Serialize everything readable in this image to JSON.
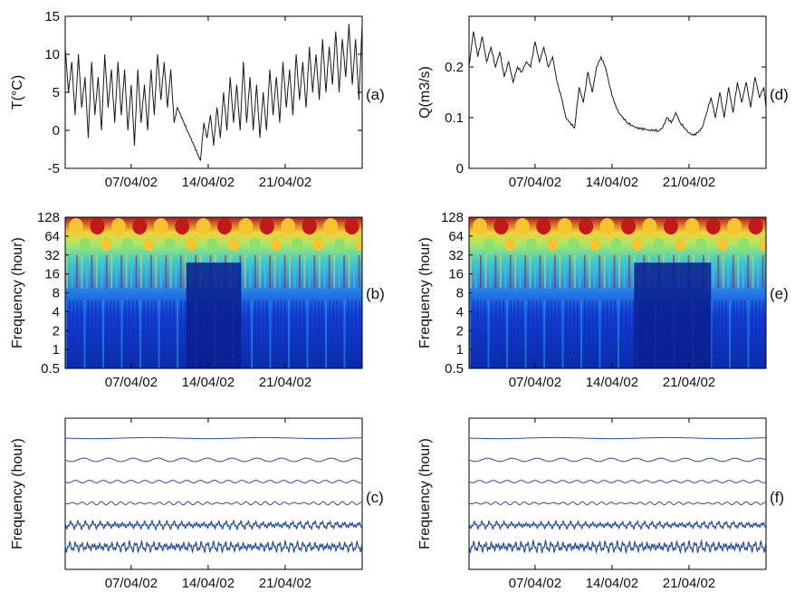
{
  "chart_data": [
    {
      "id": "a",
      "type": "line",
      "panel_label": "(a)",
      "ylabel": "T(°C)",
      "ylim": [
        -5,
        15
      ],
      "yticks": [
        "-5",
        "0",
        "5",
        "10",
        "15"
      ],
      "xticks": [
        "07/04/02",
        "14/04/02",
        "21/04/02"
      ],
      "color": "#1a1a1a",
      "x_days": [
        0,
        0.3,
        0.6,
        0.9,
        1.2,
        1.5,
        1.8,
        2.1,
        2.4,
        2.7,
        3.0,
        3.3,
        3.6,
        3.9,
        4.2,
        4.5,
        4.8,
        5.1,
        5.4,
        5.7,
        6.0,
        6.3,
        6.6,
        6.9,
        7.2,
        7.5,
        7.8,
        8.1,
        8.4,
        8.7,
        9.0,
        9.3,
        9.6,
        9.9,
        10.2,
        10.5,
        10.8,
        11.1,
        11.4,
        11.7,
        12.0,
        12.3,
        12.6,
        12.9,
        13.2,
        13.5,
        13.8,
        14.1,
        14.4,
        14.7,
        15.0,
        15.3,
        15.6,
        15.9,
        16.2,
        16.5,
        16.8,
        17.1,
        17.4,
        17.7,
        18.0,
        18.3,
        18.6,
        18.9,
        19.2,
        19.5,
        19.8,
        20.1,
        20.4,
        20.7,
        21.0,
        21.3,
        21.6,
        21.9,
        22.2,
        22.5,
        22.8,
        23.1,
        23.4,
        23.7,
        24.0,
        24.3,
        24.6,
        24.9,
        25.2,
        25.5,
        25.8,
        26.1,
        26.4,
        26.7,
        27.0
      ],
      "values": [
        11,
        5,
        9,
        2,
        10,
        3,
        7,
        -1,
        9,
        2,
        7,
        0,
        10,
        3,
        8,
        1,
        9,
        2,
        8,
        0,
        6,
        -2,
        8,
        1,
        6,
        0,
        8,
        2,
        10,
        4,
        9,
        3,
        8,
        1,
        3,
        2,
        1,
        0,
        -1,
        -2,
        -3,
        -4,
        1,
        -1,
        2,
        -2,
        3,
        -1,
        5,
        0,
        7,
        1,
        6,
        0,
        9,
        1,
        7,
        0,
        6,
        -1,
        5,
        0,
        8,
        2,
        7,
        1,
        9,
        3,
        8,
        2,
        10,
        4,
        9,
        3,
        11,
        5,
        10,
        4,
        12,
        5,
        11,
        6,
        13,
        5,
        12,
        7,
        14,
        6,
        12,
        4,
        14
      ]
    },
    {
      "id": "d",
      "type": "line",
      "panel_label": "(d)",
      "ylabel": "Q(m3/s)",
      "ylim": [
        0,
        0.3
      ],
      "yticks": [
        "0",
        "0.1",
        "0.2"
      ],
      "xticks": [
        "07/04/02",
        "14/04/02",
        "21/04/02"
      ],
      "color": "#1a1a1a",
      "x_days": [
        0,
        0.4,
        0.8,
        1.2,
        1.6,
        2.0,
        2.4,
        2.8,
        3.2,
        3.6,
        4.0,
        4.4,
        4.8,
        5.2,
        5.6,
        6.0,
        6.4,
        6.8,
        7.2,
        7.6,
        8.0,
        8.4,
        8.8,
        9.2,
        9.6,
        10.0,
        10.4,
        10.8,
        11.2,
        11.6,
        12.0,
        12.4,
        12.8,
        13.2,
        13.6,
        14.0,
        14.4,
        14.8,
        15.2,
        15.6,
        16.0,
        16.4,
        16.8,
        17.2,
        17.6,
        18.0,
        18.4,
        18.8,
        19.2,
        19.6,
        20.0,
        20.4,
        20.8,
        21.2,
        21.6,
        22.0,
        22.4,
        22.8,
        23.2,
        23.6,
        24.0,
        24.4,
        24.8,
        25.2,
        25.6,
        26.0,
        26.4,
        26.8,
        27.0
      ],
      "values": [
        0.2,
        0.27,
        0.22,
        0.26,
        0.21,
        0.24,
        0.2,
        0.23,
        0.18,
        0.21,
        0.17,
        0.2,
        0.19,
        0.21,
        0.2,
        0.25,
        0.21,
        0.24,
        0.2,
        0.22,
        0.17,
        0.14,
        0.1,
        0.09,
        0.08,
        0.16,
        0.13,
        0.19,
        0.15,
        0.2,
        0.22,
        0.2,
        0.16,
        0.13,
        0.11,
        0.1,
        0.09,
        0.085,
        0.08,
        0.078,
        0.077,
        0.075,
        0.076,
        0.074,
        0.08,
        0.1,
        0.09,
        0.11,
        0.09,
        0.08,
        0.07,
        0.065,
        0.07,
        0.08,
        0.11,
        0.14,
        0.1,
        0.15,
        0.1,
        0.16,
        0.11,
        0.17,
        0.13,
        0.17,
        0.12,
        0.18,
        0.14,
        0.16,
        0.12
      ]
    },
    {
      "id": "b",
      "type": "heatmap",
      "panel_label": "(b)",
      "ylabel": "Frequency (hour)",
      "yticks": [
        "128",
        "64",
        "32",
        "16",
        "8",
        "4",
        "2",
        "1",
        "0.5"
      ],
      "xticks": [
        "07/04/02",
        "14/04/02",
        "21/04/02"
      ],
      "colormap": "jet",
      "quiet_region_days": [
        11,
        16
      ]
    },
    {
      "id": "e",
      "type": "heatmap",
      "panel_label": "(e)",
      "ylabel": "Frequency (hour)",
      "yticks": [
        "128",
        "64",
        "32",
        "16",
        "8",
        "4",
        "2",
        "1",
        "0.5"
      ],
      "xticks": [
        "07/04/02",
        "14/04/02",
        "21/04/02"
      ],
      "colormap": "jet",
      "quiet_region_days": [
        15,
        22
      ]
    },
    {
      "id": "c",
      "type": "line",
      "panel_label": "(c)",
      "ylabel": "Frequency (hour)",
      "xticks": [
        "07/04/02",
        "14/04/02",
        "21/04/02"
      ],
      "color": "#2b4fa0",
      "series_count": 6,
      "amplitude_per_series": [
        1.0,
        3.2,
        2.4,
        2.0,
        3.5,
        4.5
      ]
    },
    {
      "id": "f",
      "type": "line",
      "panel_label": "(f)",
      "ylabel": "Frequency (hour)",
      "xticks": [
        "07/04/02",
        "14/04/02",
        "21/04/02"
      ],
      "color": "#2b4fa0",
      "series_count": 6,
      "amplitude_per_series": [
        1.0,
        3.0,
        2.2,
        1.8,
        3.2,
        4.8
      ]
    }
  ]
}
